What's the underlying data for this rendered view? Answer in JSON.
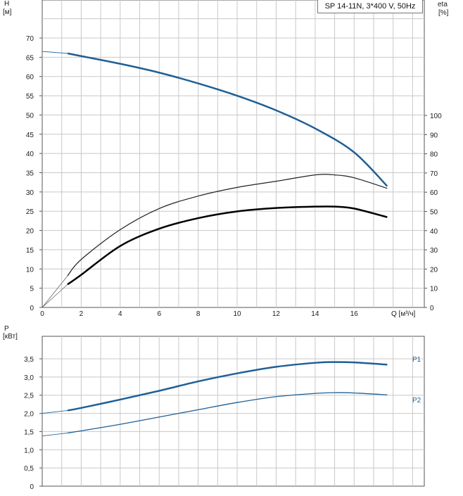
{
  "colors": {
    "blue": "#1f5f96",
    "light_blue": "#2f73ad",
    "black": "#000000",
    "grid": "#c8c8c8",
    "axis": "#555555"
  },
  "chart_data": [
    {
      "type": "line",
      "panel": "head-efficiency",
      "title": "SP 14-11N, 3*400 V, 50Hz",
      "left_axis": {
        "label": "H",
        "unit": "[м]",
        "ylim": [
          0,
          75
        ],
        "ticks": [
          0,
          5,
          10,
          15,
          20,
          25,
          30,
          35,
          40,
          45,
          50,
          55,
          60,
          65,
          70
        ]
      },
      "right_axis": {
        "label": "eta",
        "unit": "[%]",
        "ylim": [
          0,
          160
        ],
        "ticks": [
          0,
          10,
          20,
          30,
          40,
          50,
          60,
          70,
          80,
          90,
          100
        ]
      },
      "x_axis": {
        "label": "Q [м³/ч]",
        "xlim": [
          0,
          19.6
        ],
        "ticks": [
          0,
          2,
          4,
          6,
          8,
          10,
          12,
          14,
          16
        ]
      },
      "grid": true,
      "series": [
        {
          "axis": "left",
          "x": [
            0,
            1.3,
            2,
            4,
            6,
            8,
            10,
            12,
            14,
            16,
            17.7
          ],
          "y": [
            66.5,
            66,
            65.3,
            63.3,
            61,
            58.2,
            55,
            51.2,
            46.5,
            40.3,
            31.5
          ],
          "extrapolated_to": 0
        },
        {
          "axis": "right",
          "x": [
            1.3,
            2,
            4,
            6,
            8,
            10,
            12,
            14,
            15,
            16,
            17.7
          ],
          "y": [
            12,
            17,
            32,
            41,
            46.5,
            50,
            51.8,
            52.5,
            52.5,
            51.5,
            47
          ],
          "origin_at": 0
        },
        {
          "axis": "right",
          "x": [
            1.3,
            2,
            4,
            6,
            8,
            10,
            12,
            14,
            15,
            16,
            17.7
          ],
          "y": [
            16.5,
            25,
            40.5,
            51.5,
            58,
            62.5,
            65.7,
            69,
            69,
            67.5,
            62
          ],
          "origin_at": 0
        }
      ]
    },
    {
      "type": "line",
      "panel": "power",
      "y_axis": {
        "label": "P",
        "unit": "[кВт]",
        "ylim": [
          0,
          3.9
        ],
        "ticks": [
          "0",
          "0,5",
          "1,0",
          "1,5",
          "2,0",
          "2,5",
          "3,0",
          "3,5"
        ]
      },
      "x_axis": {
        "xlim": [
          0,
          19.6
        ],
        "ticks": [
          0,
          2,
          4,
          6,
          8,
          10,
          12,
          14,
          16
        ]
      },
      "grid": true,
      "series": [
        {
          "name": "P1",
          "x": [
            0,
            1.3,
            2,
            4,
            6,
            8,
            10,
            12,
            14,
            15,
            16,
            17.7
          ],
          "y": [
            2.0,
            2.08,
            2.15,
            2.38,
            2.62,
            2.88,
            3.1,
            3.28,
            3.39,
            3.41,
            3.4,
            3.34
          ]
        },
        {
          "name": "P2",
          "x": [
            0,
            1.3,
            2,
            4,
            6,
            8,
            10,
            12,
            14,
            15,
            16,
            17.7
          ],
          "y": [
            1.38,
            1.46,
            1.52,
            1.7,
            1.9,
            2.1,
            2.3,
            2.46,
            2.55,
            2.57,
            2.56,
            2.51
          ]
        }
      ]
    }
  ]
}
